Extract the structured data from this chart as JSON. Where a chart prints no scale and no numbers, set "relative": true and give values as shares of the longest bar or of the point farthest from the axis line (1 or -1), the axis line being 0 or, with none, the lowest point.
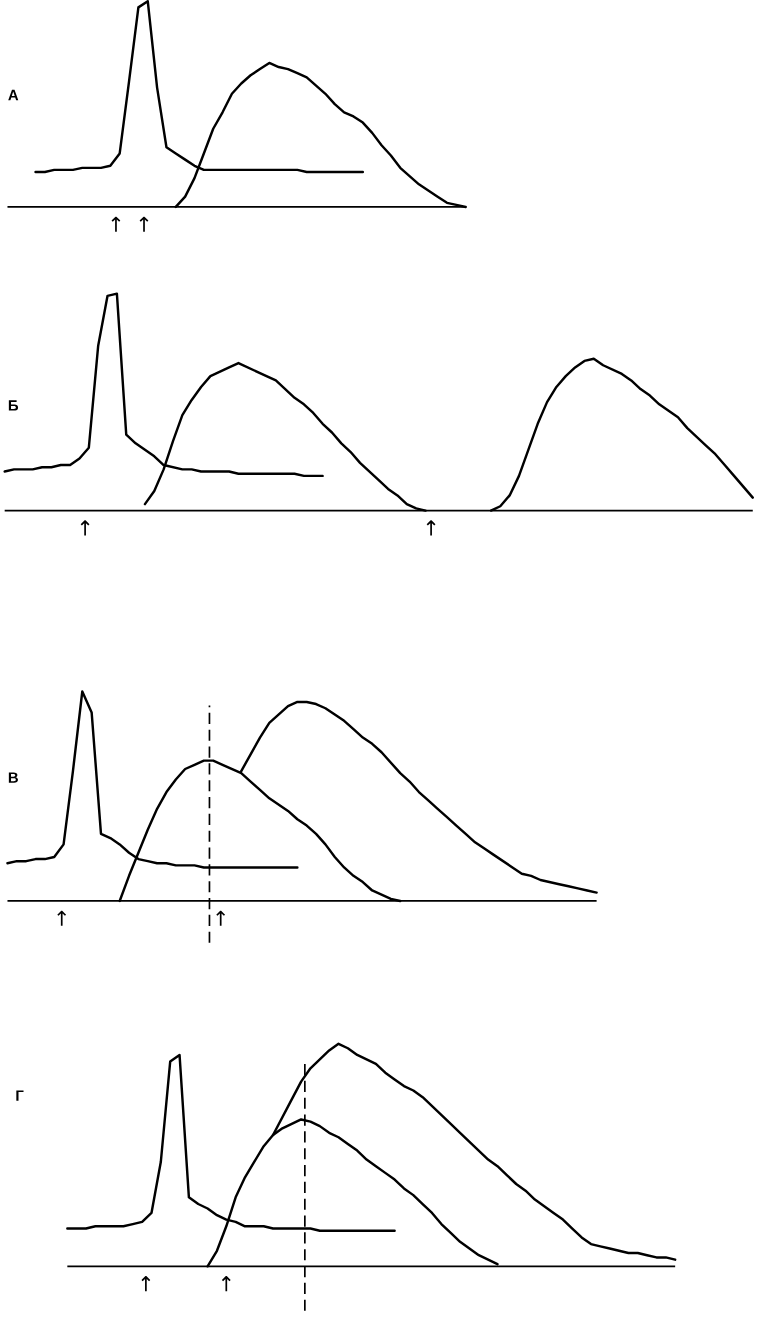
{
  "chart_data": [
    {
      "type": "line",
      "title": "А",
      "relative": true,
      "categories": [
        null,
        null,
        null,
        null,
        null,
        null,
        null,
        null,
        null,
        null,
        null,
        null,
        null,
        null,
        null,
        null,
        null,
        null,
        null,
        null,
        null,
        null,
        null,
        null,
        null,
        null,
        null,
        null,
        null,
        null,
        null,
        null,
        null,
        null,
        null,
        null,
        null,
        null,
        null,
        null,
        null,
        null,
        null,
        null,
        null,
        null,
        null,
        null,
        null,
        null
      ],
      "series": [
        {
          "color": "#000000",
          "values": [
            null,
            null,
            null,
            0.17,
            0.17,
            0.18,
            0.18,
            0.18,
            0.19,
            0.19,
            0.19,
            0.2,
            0.26,
            0.61,
            0.97,
            1.0,
            0.58,
            0.29,
            0.26,
            0.23,
            0.2,
            0.18,
            0.18,
            0.18,
            0.18,
            0.18,
            0.18,
            0.18,
            0.18,
            0.18,
            0.18,
            0.18,
            0.17,
            0.17,
            0.17,
            0.17,
            0.17,
            0.17,
            0.17,
            null,
            null,
            null,
            null,
            null,
            null,
            null,
            null,
            null,
            null,
            null
          ]
        },
        {
          "color": "#000000",
          "values": [
            null,
            null,
            null,
            null,
            null,
            null,
            null,
            null,
            null,
            null,
            null,
            null,
            null,
            null,
            null,
            null,
            null,
            null,
            0,
            0.05,
            0.14,
            0.26,
            0.38,
            0.46,
            0.55,
            0.6,
            0.64,
            0.67,
            0.7,
            0.68,
            0.67,
            0.65,
            0.63,
            0.59,
            0.55,
            0.5,
            0.46,
            0.44,
            0.41,
            0.36,
            0.3,
            0.25,
            0.19,
            0.15,
            0.11,
            0.08,
            0.05,
            0.02,
            0.01,
            0
          ]
        }
      ],
      "annotations": [
        "↑",
        "↑"
      ]
    },
    {
      "type": "line",
      "title": "Б",
      "relative": true,
      "categories": [
        null,
        null,
        null,
        null,
        null,
        null,
        null,
        null,
        null,
        null,
        null,
        null,
        null,
        null,
        null,
        null,
        null,
        null,
        null,
        null,
        null,
        null,
        null,
        null,
        null,
        null,
        null,
        null,
        null,
        null,
        null,
        null,
        null,
        null,
        null,
        null,
        null,
        null,
        null,
        null,
        null,
        null,
        null,
        null,
        null,
        null,
        null,
        null,
        null,
        null,
        null,
        null,
        null,
        null,
        null,
        null,
        null,
        null,
        null,
        null,
        null,
        null,
        null,
        null,
        null,
        null,
        null,
        null,
        null,
        null,
        null,
        null,
        null,
        null,
        null,
        null,
        null,
        null,
        null,
        null,
        null
      ],
      "series": [
        {
          "color": "#000000",
          "values": [
            0.18,
            0.19,
            0.19,
            0.19,
            0.2,
            0.2,
            0.21,
            0.21,
            0.24,
            0.29,
            0.76,
            0.99,
            1.0,
            0.35,
            0.31,
            0.28,
            0.25,
            0.21,
            0.2,
            0.19,
            0.19,
            0.18,
            0.18,
            0.18,
            0.18,
            0.17,
            0.17,
            0.17,
            0.17,
            0.17,
            0.17,
            0.17,
            0.16,
            0.16,
            0.16,
            null,
            null,
            null,
            null,
            null,
            null,
            null,
            null,
            null,
            null,
            null,
            null,
            null,
            null,
            null,
            null,
            null,
            null,
            null,
            null,
            null,
            null,
            null,
            null,
            null,
            null,
            null,
            null,
            null,
            null,
            null,
            null,
            null,
            null,
            null,
            null,
            null,
            null,
            null,
            null,
            null,
            null,
            null,
            null,
            null,
            null
          ]
        },
        {
          "color": "#000000",
          "values": [
            null,
            null,
            null,
            null,
            null,
            null,
            null,
            null,
            null,
            null,
            null,
            null,
            null,
            null,
            null,
            0.03,
            0.09,
            0.19,
            0.32,
            0.44,
            0.51,
            0.57,
            0.62,
            0.64,
            0.66,
            0.68,
            0.66,
            0.64,
            0.62,
            0.6,
            0.56,
            0.52,
            0.49,
            0.45,
            0.4,
            0.36,
            0.31,
            0.27,
            0.22,
            0.18,
            0.14,
            0.1,
            0.07,
            0.03,
            0.01,
            0,
            null,
            null,
            null,
            null,
            null,
            null,
            null,
            null,
            null,
            null,
            null,
            null,
            null,
            null,
            null,
            null,
            null,
            null,
            null,
            null,
            null,
            null,
            null,
            null,
            null,
            null,
            null,
            null,
            null,
            null,
            null,
            null,
            null,
            null,
            null
          ]
        },
        {
          "color": "#000000",
          "values": [
            null,
            null,
            null,
            null,
            null,
            null,
            null,
            null,
            null,
            null,
            null,
            null,
            null,
            null,
            null,
            null,
            null,
            null,
            null,
            null,
            null,
            null,
            null,
            null,
            null,
            null,
            null,
            null,
            null,
            null,
            null,
            null,
            null,
            null,
            null,
            null,
            null,
            null,
            null,
            null,
            null,
            null,
            null,
            null,
            null,
            null,
            null,
            null,
            null,
            null,
            null,
            null,
            0,
            0.02,
            0.07,
            0.16,
            0.28,
            0.4,
            0.5,
            0.57,
            0.62,
            0.66,
            0.69,
            0.7,
            0.67,
            0.65,
            0.63,
            0.6,
            0.56,
            0.53,
            0.49,
            0.46,
            0.43,
            0.38,
            0.34,
            0.3,
            0.26,
            0.21,
            0.16,
            0.11,
            0.06
          ]
        }
      ],
      "annotations": [
        "↑",
        "↑"
      ]
    },
    {
      "type": "line",
      "title": "В",
      "relative": true,
      "categories": [
        null,
        null,
        null,
        null,
        null,
        null,
        null,
        null,
        null,
        null,
        null,
        null,
        null,
        null,
        null,
        null,
        null,
        null,
        null,
        null,
        null,
        null,
        null,
        null,
        null,
        null,
        null,
        null,
        null,
        null,
        null,
        null,
        null,
        null,
        null,
        null,
        null,
        null,
        null,
        null,
        null,
        null,
        null,
        null,
        null,
        null,
        null,
        null,
        null,
        null,
        null,
        null,
        null,
        null,
        null,
        null,
        null,
        null,
        null,
        null,
        null,
        null,
        null,
        null
      ],
      "series": [
        {
          "color": "#000000",
          "values": [
            0.18,
            0.19,
            0.19,
            0.2,
            0.2,
            0.21,
            0.27,
            0.62,
            1.0,
            0.9,
            0.32,
            0.3,
            0.27,
            0.23,
            0.2,
            0.19,
            0.18,
            0.18,
            0.17,
            0.17,
            0.17,
            0.16,
            0.16,
            0.16,
            0.16,
            0.16,
            0.16,
            0.16,
            0.16,
            0.16,
            0.16,
            0.16,
            null,
            null,
            null,
            null,
            null,
            null,
            null,
            null,
            null,
            null,
            null,
            null,
            null,
            null,
            null,
            null,
            null,
            null,
            null,
            null,
            null,
            null,
            null,
            null,
            null,
            null,
            null,
            null,
            null,
            null,
            null,
            null
          ]
        },
        {
          "color": "#000000",
          "values": [
            null,
            null,
            null,
            null,
            null,
            null,
            null,
            null,
            null,
            null,
            null,
            null,
            0,
            0.12,
            0.23,
            0.34,
            0.44,
            0.52,
            0.58,
            0.63,
            0.65,
            0.67,
            0.67,
            0.65,
            0.63,
            0.61,
            0.57,
            0.53,
            0.49,
            0.46,
            0.43,
            0.39,
            0.36,
            0.32,
            0.27,
            0.21,
            0.16,
            0.12,
            0.09,
            0.05,
            0.03,
            0.01,
            0,
            null,
            null,
            null,
            null,
            null,
            null,
            null,
            null,
            null,
            null,
            null,
            null,
            null,
            null,
            null,
            null,
            null,
            null,
            null,
            null,
            null
          ]
        },
        {
          "color": "#000000",
          "values": [
            null,
            null,
            null,
            null,
            null,
            null,
            null,
            null,
            null,
            null,
            null,
            null,
            null,
            null,
            null,
            null,
            null,
            null,
            null,
            null,
            null,
            null,
            null,
            null,
            null,
            0.62,
            0.7,
            0.78,
            0.85,
            0.89,
            0.93,
            0.95,
            0.95,
            0.94,
            0.92,
            0.89,
            0.86,
            0.82,
            0.78,
            0.75,
            0.71,
            0.66,
            0.61,
            0.57,
            0.52,
            0.48,
            0.44,
            0.4,
            0.36,
            0.32,
            0.28,
            0.25,
            0.22,
            0.19,
            0.16,
            0.13,
            0.12,
            0.1,
            0.09,
            0.08,
            0.07,
            0.06,
            0.05,
            0.04
          ]
        }
      ],
      "annotations": [
        "↑",
        "↑"
      ]
    },
    {
      "type": "line",
      "title": "Г",
      "relative": true,
      "categories": [
        null,
        null,
        null,
        null,
        null,
        null,
        null,
        null,
        null,
        null,
        null,
        null,
        null,
        null,
        null,
        null,
        null,
        null,
        null,
        null,
        null,
        null,
        null,
        null,
        null,
        null,
        null,
        null,
        null,
        null,
        null,
        null,
        null,
        null,
        null,
        null,
        null,
        null,
        null,
        null,
        null,
        null,
        null,
        null,
        null,
        null,
        null,
        null,
        null,
        null,
        null,
        null,
        null,
        null,
        null,
        null,
        null,
        null,
        null,
        null,
        null,
        null,
        null,
        null,
        null,
        null
      ],
      "series": [
        {
          "color": "#000000",
          "values": [
            0.17,
            0.17,
            0.17,
            0.18,
            0.18,
            0.18,
            0.18,
            0.19,
            0.2,
            0.24,
            0.47,
            0.92,
            0.95,
            0.31,
            0.28,
            0.26,
            0.23,
            0.21,
            0.2,
            0.18,
            0.18,
            0.18,
            0.17,
            0.17,
            0.17,
            0.17,
            0.17,
            0.16,
            0.16,
            0.16,
            0.16,
            0.16,
            0.16,
            0.16,
            0.16,
            0.16,
            null,
            null,
            null,
            null,
            null,
            null,
            null,
            null,
            null,
            null,
            null,
            null,
            null,
            null,
            null,
            null,
            null,
            null,
            null,
            null,
            null,
            null,
            null,
            null,
            null,
            null,
            null,
            null,
            null,
            null
          ]
        },
        {
          "color": "#000000",
          "values": [
            null,
            null,
            null,
            null,
            null,
            null,
            null,
            null,
            null,
            null,
            null,
            null,
            null,
            null,
            null,
            0,
            0.07,
            0.18,
            0.31,
            0.4,
            0.47,
            0.54,
            0.59,
            0.62,
            0.64,
            0.66,
            0.65,
            0.63,
            0.6,
            0.58,
            0.55,
            0.52,
            0.48,
            0.45,
            0.42,
            0.39,
            0.35,
            0.32,
            0.28,
            0.24,
            0.19,
            0.15,
            0.11,
            0.08,
            0.05,
            0.03,
            0.01,
            null,
            null,
            null,
            null,
            null,
            null,
            null,
            null,
            null,
            null,
            null,
            null,
            null,
            null,
            null,
            null,
            null,
            null,
            null
          ]
        },
        {
          "color": "#000000",
          "values": [
            null,
            null,
            null,
            null,
            null,
            null,
            null,
            null,
            null,
            null,
            null,
            null,
            null,
            null,
            null,
            null,
            null,
            null,
            null,
            null,
            null,
            null,
            0.59,
            0.67,
            0.75,
            0.83,
            0.89,
            0.93,
            0.97,
            1.0,
            0.98,
            0.95,
            0.93,
            0.91,
            0.87,
            0.84,
            0.81,
            0.79,
            0.76,
            0.72,
            0.68,
            0.64,
            0.6,
            0.56,
            0.52,
            0.48,
            0.45,
            0.41,
            0.37,
            0.34,
            0.3,
            0.27,
            0.24,
            0.21,
            0.17,
            0.13,
            0.1,
            0.09,
            0.08,
            0.07,
            0.06,
            0.06,
            0.05,
            0.04,
            0.04,
            0.03
          ]
        }
      ],
      "annotations": [
        "↑",
        "↑"
      ]
    }
  ]
}
